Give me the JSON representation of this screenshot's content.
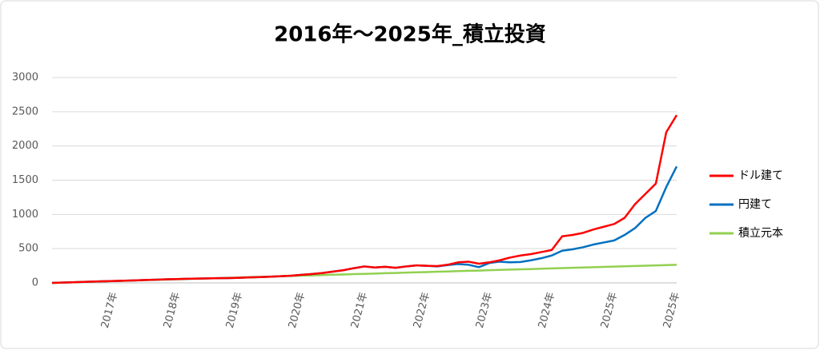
{
  "chart_data": {
    "type": "line",
    "title": "2016年～2025年_積立投資",
    "categories": [
      null,
      null,
      null,
      null,
      null,
      null,
      "2017年",
      null,
      null,
      null,
      null,
      null,
      "2018年",
      null,
      null,
      null,
      null,
      null,
      "2019年",
      null,
      null,
      null,
      null,
      null,
      "2020年",
      null,
      null,
      null,
      null,
      null,
      "2021年",
      null,
      null,
      null,
      null,
      null,
      "2022年",
      null,
      null,
      null,
      null,
      null,
      "2023年",
      null,
      null,
      null,
      null,
      null,
      "2024年",
      null,
      null,
      null,
      null,
      null,
      "2025年",
      null,
      null,
      null,
      null,
      null,
      "2025年"
    ],
    "series": [
      {
        "name": "ドル建て",
        "color": "#ff0000",
        "values": [
          0,
          4,
          9,
          14,
          19,
          24,
          28,
          32,
          37,
          42,
          47,
          52,
          56,
          60,
          63,
          66,
          68,
          70,
          74,
          80,
          85,
          90,
          98,
          105,
          118,
          130,
          145,
          165,
          185,
          215,
          240,
          225,
          235,
          220,
          240,
          255,
          250,
          245,
          265,
          300,
          310,
          280,
          300,
          330,
          370,
          400,
          420,
          450,
          480,
          680,
          700,
          730,
          780,
          820,
          860,
          950,
          1150,
          1300,
          1450,
          2200,
          2450
        ]
      },
      {
        "name": "円建て",
        "color": "#0070c0",
        "values": [
          0,
          4,
          9,
          14,
          19,
          24,
          28,
          32,
          37,
          42,
          47,
          52,
          56,
          60,
          63,
          66,
          68,
          70,
          74,
          80,
          85,
          90,
          98,
          105,
          118,
          130,
          145,
          165,
          185,
          215,
          240,
          225,
          235,
          220,
          240,
          255,
          250,
          240,
          260,
          275,
          265,
          230,
          290,
          310,
          300,
          305,
          330,
          360,
          400,
          470,
          490,
          520,
          560,
          590,
          620,
          700,
          800,
          950,
          1050,
          1400,
          1700
        ]
      },
      {
        "name": "積立元本",
        "color": "#92d050",
        "values": [
          0,
          4,
          9,
          13,
          18,
          22,
          26,
          31,
          35,
          40,
          44,
          48,
          53,
          57,
          62,
          66,
          70,
          75,
          79,
          84,
          88,
          92,
          97,
          101,
          106,
          110,
          114,
          119,
          123,
          128,
          132,
          136,
          141,
          145,
          150,
          154,
          158,
          163,
          167,
          172,
          176,
          180,
          185,
          189,
          194,
          198,
          202,
          207,
          211,
          216,
          220,
          224,
          229,
          233,
          238,
          242,
          246,
          251,
          255,
          260,
          264
        ]
      }
    ],
    "ylim": [
      0,
      3000
    ],
    "yticks": [
      0,
      500,
      1000,
      1500,
      2000,
      2500,
      3000
    ],
    "grid": true,
    "legend": "right"
  }
}
